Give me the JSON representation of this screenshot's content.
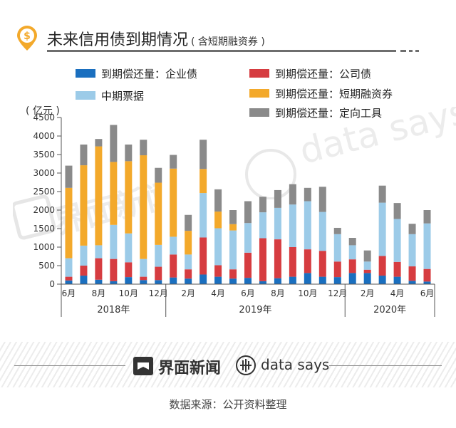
{
  "header": {
    "title": "未来信用债到期情况",
    "subtitle": "( 含短期融资券 )",
    "badge_symbol": "$"
  },
  "legend": [
    {
      "label": "到期偿还量：企业债",
      "color": "#1a6fbf"
    },
    {
      "label": "到期偿还量：公司债",
      "color": "#d63c40"
    },
    {
      "label": "中期票据",
      "color": "#9ccbe8"
    },
    {
      "label": "到期偿还量：短期融资券",
      "color": "#f3a92b"
    },
    {
      "label": "到期偿还量：定向工具",
      "color": "#8a8a8a"
    }
  ],
  "unit_label": "( 亿元 )",
  "chart_data": {
    "type": "bar",
    "stacked": true,
    "ylim": [
      0,
      4500
    ],
    "yticks": [
      0,
      500,
      1000,
      1500,
      2000,
      2500,
      3000,
      3500,
      4000,
      4500
    ],
    "x_tick_labels": [
      {
        "index": 0,
        "label": "6月"
      },
      {
        "index": 2,
        "label": "8月"
      },
      {
        "index": 4,
        "label": "10月"
      },
      {
        "index": 6,
        "label": "12月"
      },
      {
        "index": 8,
        "label": "2月"
      },
      {
        "index": 10,
        "label": "4月"
      },
      {
        "index": 12,
        "label": "6月"
      },
      {
        "index": 14,
        "label": "8月"
      },
      {
        "index": 16,
        "label": "10月"
      },
      {
        "index": 18,
        "label": "12月"
      },
      {
        "index": 20,
        "label": "2月"
      },
      {
        "index": 22,
        "label": "4月"
      },
      {
        "index": 24,
        "label": "6月"
      }
    ],
    "year_groups": [
      {
        "label": "2018年",
        "start": 0,
        "end": 6
      },
      {
        "label": "2019年",
        "start": 7,
        "end": 18
      },
      {
        "label": "2020年",
        "start": 19,
        "end": 24
      }
    ],
    "categories": [
      "2018-06",
      "2018-07",
      "2018-08",
      "2018-09",
      "2018-10",
      "2018-11",
      "2018-12",
      "2019-01",
      "2019-02",
      "2019-03",
      "2019-04",
      "2019-05",
      "2019-06",
      "2019-07",
      "2019-08",
      "2019-09",
      "2019-10",
      "2019-11",
      "2019-12",
      "2020-01",
      "2020-02",
      "2020-03",
      "2020-04",
      "2020-05",
      "2020-06"
    ],
    "series": [
      {
        "name": "到期偿还量：企业债",
        "color": "#1a6fbf",
        "values": [
          100,
          230,
          120,
          80,
          190,
          110,
          110,
          180,
          150,
          260,
          200,
          150,
          170,
          80,
          160,
          200,
          300,
          200,
          190,
          300,
          300,
          230,
          200,
          90,
          70
        ]
      },
      {
        "name": "到期偿还量：公司债",
        "color": "#d63c40",
        "values": [
          100,
          270,
          580,
          600,
          400,
          90,
          360,
          620,
          250,
          1000,
          310,
          250,
          680,
          1160,
          1050,
          800,
          640,
          700,
          420,
          370,
          90,
          530,
          400,
          390,
          340
        ]
      },
      {
        "name": "中期票据",
        "color": "#9ccbe8",
        "values": [
          500,
          540,
          350,
          920,
          780,
          480,
          590,
          480,
          400,
          1200,
          1000,
          1050,
          800,
          700,
          850,
          1150,
          1300,
          1050,
          740,
          380,
          220,
          1440,
          1160,
          870,
          1230
        ]
      },
      {
        "name": "到期偿还量：短期融资券",
        "color": "#f3a92b",
        "values": [
          1900,
          2170,
          2670,
          1700,
          1950,
          2800,
          1680,
          1840,
          640,
          650,
          450,
          170,
          0,
          0,
          0,
          0,
          0,
          0,
          0,
          0,
          0,
          0,
          0,
          0,
          0
        ]
      },
      {
        "name": "到期偿还量：定向工具",
        "color": "#8a8a8a",
        "values": [
          600,
          560,
          200,
          1000,
          450,
          420,
          400,
          370,
          430,
          790,
          600,
          380,
          590,
          420,
          480,
          550,
          360,
          680,
          170,
          200,
          300,
          460,
          430,
          280,
          360
        ]
      }
    ]
  },
  "footer": {
    "brand_cn": "界面新闻",
    "brand_en": "data says",
    "source": "数据来源：公开资料整理"
  }
}
